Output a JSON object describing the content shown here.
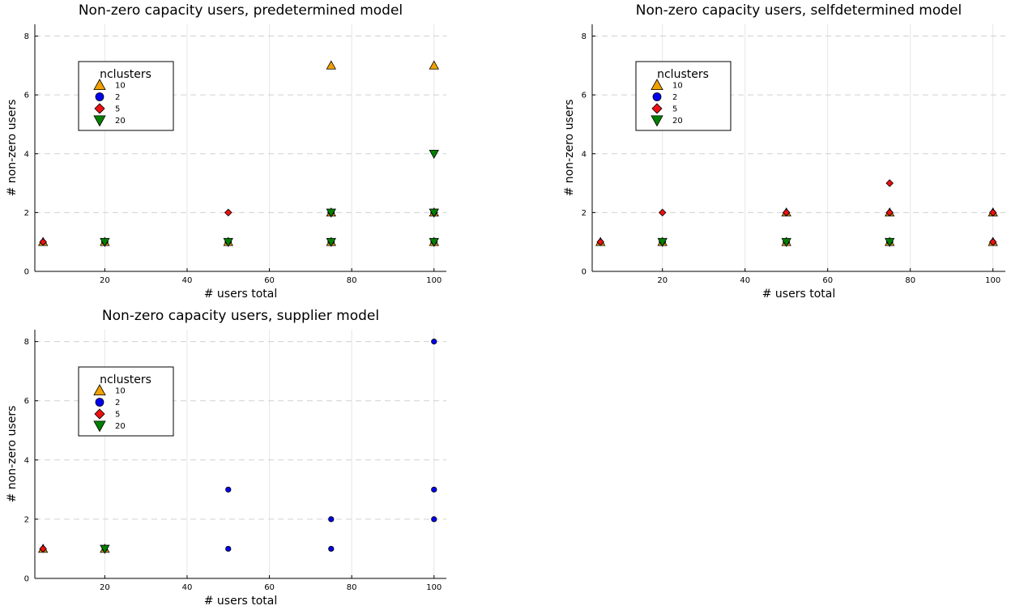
{
  "legend_title": "nclusters",
  "series_styles": [
    {
      "name": "10",
      "marker": "triangle-up",
      "color": "#f0a000"
    },
    {
      "name": "2",
      "marker": "circle",
      "color": "#0000ee"
    },
    {
      "name": "5",
      "marker": "diamond",
      "color": "#ee1111"
    },
    {
      "name": "20",
      "marker": "triangle-down",
      "color": "#008000"
    }
  ],
  "chart_data": [
    {
      "type": "scatter",
      "title": "Non-zero capacity users, predetermined model",
      "xlabel": "# users total",
      "ylabel": "# non-zero users",
      "xlim": [
        3,
        103
      ],
      "ylim": [
        0,
        8.4
      ],
      "xticks": [
        20,
        40,
        60,
        80,
        100
      ],
      "yticks": [
        0,
        2,
        4,
        6,
        8
      ],
      "grid": true,
      "legend_position": "top-left",
      "series": [
        {
          "name": "10",
          "points": [
            [
              5,
              1
            ],
            [
              20,
              1
            ],
            [
              50,
              1
            ],
            [
              75,
              1
            ],
            [
              75,
              2
            ],
            [
              75,
              7
            ],
            [
              100,
              1
            ],
            [
              100,
              2
            ],
            [
              100,
              7
            ]
          ]
        },
        {
          "name": "2",
          "points": [
            [
              5,
              1
            ],
            [
              20,
              1
            ],
            [
              50,
              1
            ],
            [
              75,
              1
            ],
            [
              75,
              2
            ],
            [
              100,
              1
            ],
            [
              100,
              2
            ]
          ]
        },
        {
          "name": "5",
          "points": [
            [
              5,
              1
            ],
            [
              20,
              1
            ],
            [
              50,
              1
            ],
            [
              50,
              2
            ],
            [
              75,
              1
            ],
            [
              75,
              2
            ],
            [
              100,
              1
            ],
            [
              100,
              2
            ]
          ]
        },
        {
          "name": "20",
          "points": [
            [
              20,
              1
            ],
            [
              50,
              1
            ],
            [
              75,
              1
            ],
            [
              75,
              2
            ],
            [
              100,
              1
            ],
            [
              100,
              2
            ],
            [
              100,
              4
            ]
          ]
        }
      ]
    },
    {
      "type": "scatter",
      "title": "Non-zero capacity users, selfdetermined model",
      "xlabel": "# users total",
      "ylabel": "# non-zero users",
      "xlim": [
        3,
        103
      ],
      "ylim": [
        0,
        8.4
      ],
      "xticks": [
        20,
        40,
        60,
        80,
        100
      ],
      "yticks": [
        0,
        2,
        4,
        6,
        8
      ],
      "grid": true,
      "legend_position": "top-left",
      "series": [
        {
          "name": "10",
          "points": [
            [
              5,
              1
            ],
            [
              20,
              1
            ],
            [
              50,
              1
            ],
            [
              50,
              2
            ],
            [
              75,
              1
            ],
            [
              75,
              2
            ],
            [
              100,
              1
            ],
            [
              100,
              2
            ]
          ]
        },
        {
          "name": "2",
          "points": [
            [
              5,
              1
            ],
            [
              20,
              1
            ],
            [
              50,
              1
            ],
            [
              50,
              2
            ],
            [
              75,
              1
            ],
            [
              75,
              2
            ],
            [
              100,
              1
            ],
            [
              100,
              2
            ]
          ]
        },
        {
          "name": "5",
          "points": [
            [
              5,
              1
            ],
            [
              20,
              1
            ],
            [
              20,
              2
            ],
            [
              50,
              1
            ],
            [
              50,
              2
            ],
            [
              75,
              1
            ],
            [
              75,
              2
            ],
            [
              75,
              3
            ],
            [
              100,
              1
            ],
            [
              100,
              2
            ]
          ]
        },
        {
          "name": "20",
          "points": [
            [
              20,
              1
            ],
            [
              50,
              1
            ],
            [
              75,
              1
            ]
          ]
        }
      ]
    },
    {
      "type": "scatter",
      "title": "Non-zero capacity users, supplier model",
      "xlabel": "# users total",
      "ylabel": "# non-zero users",
      "xlim": [
        3,
        103
      ],
      "ylim": [
        0,
        8.4
      ],
      "xticks": [
        20,
        40,
        60,
        80,
        100
      ],
      "yticks": [
        0,
        2,
        4,
        6,
        8
      ],
      "grid": true,
      "legend_position": "top-left",
      "series": [
        {
          "name": "10",
          "points": [
            [
              5,
              1
            ],
            [
              20,
              1
            ]
          ]
        },
        {
          "name": "2",
          "points": [
            [
              5,
              1
            ],
            [
              20,
              1
            ],
            [
              50,
              1
            ],
            [
              50,
              3
            ],
            [
              75,
              1
            ],
            [
              75,
              2
            ],
            [
              100,
              2
            ],
            [
              100,
              3
            ],
            [
              100,
              8
            ]
          ]
        },
        {
          "name": "5",
          "points": [
            [
              5,
              1
            ]
          ]
        },
        {
          "name": "20",
          "points": [
            [
              20,
              1
            ]
          ]
        }
      ]
    }
  ]
}
